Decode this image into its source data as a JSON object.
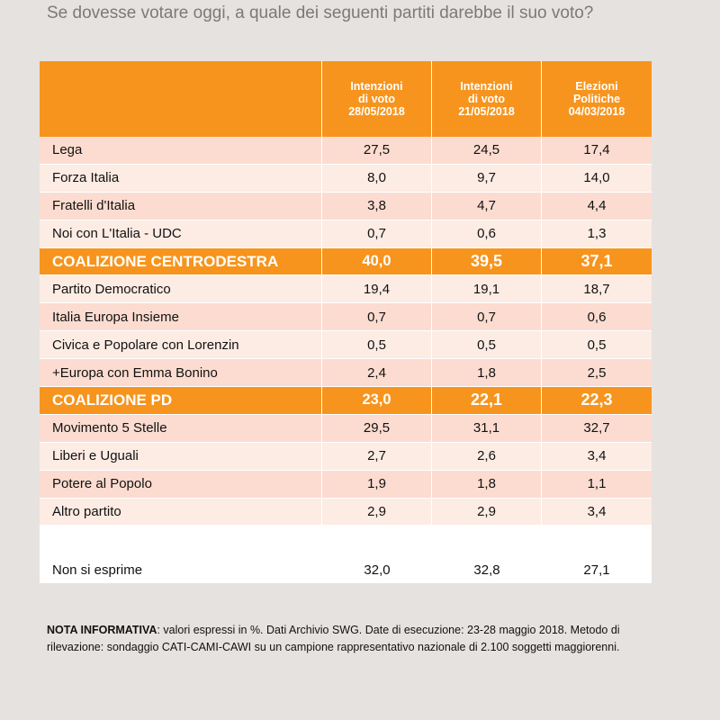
{
  "question": "Se dovesse votare oggi, a quale dei seguenti partiti darebbe il suo voto?",
  "columns": [
    [
      "Intenzioni",
      "di voto",
      "28/05/2018"
    ],
    [
      "Intenzioni",
      "di voto",
      "21/05/2018"
    ],
    [
      "Elezioni",
      "Politiche",
      "04/03/2018"
    ]
  ],
  "rows": [
    {
      "name": "Lega",
      "v": [
        "27,5",
        "24,5",
        "17,4"
      ]
    },
    {
      "name": "Forza Italia",
      "v": [
        "8,0",
        "9,7",
        "14,0"
      ]
    },
    {
      "name": "Fratelli d'Italia",
      "v": [
        "3,8",
        "4,7",
        "4,4"
      ]
    },
    {
      "name": "Noi con L'Italia - UDC",
      "v": [
        "0,7",
        "0,6",
        "1,3"
      ]
    },
    {
      "name": "COALIZIONE CENTRODESTRA",
      "v": [
        "40,0",
        "39,5",
        "37,1"
      ]
    },
    {
      "name": "Partito Democratico",
      "v": [
        "19,4",
        "19,1",
        "18,7"
      ]
    },
    {
      "name": "Italia Europa Insieme",
      "v": [
        "0,7",
        "0,7",
        "0,6"
      ]
    },
    {
      "name": "Civica e Popolare con Lorenzin",
      "v": [
        "0,5",
        "0,5",
        "0,5"
      ]
    },
    {
      "name": "+Europa con Emma Bonino",
      "v": [
        "2,4",
        "1,8",
        "2,5"
      ]
    },
    {
      "name": "COALIZIONE PD",
      "v": [
        "23,0",
        "22,1",
        "22,3"
      ]
    },
    {
      "name": "Movimento 5 Stelle",
      "v": [
        "29,5",
        "31,1",
        "32,7"
      ]
    },
    {
      "name": "Liberi e Uguali",
      "v": [
        "2,7",
        "2,6",
        "3,4"
      ]
    },
    {
      "name": "Potere al Popolo",
      "v": [
        "1,9",
        "1,8",
        "1,1"
      ]
    },
    {
      "name": "Altro partito",
      "v": [
        "2,9",
        "2,9",
        "3,4"
      ]
    }
  ],
  "non_esprime": {
    "name": "Non si esprime",
    "v": [
      "32,0",
      "32,8",
      "27,1"
    ]
  },
  "note": {
    "label": "NOTA INFORMATIVA",
    "text": ": valori espressi in %. Dati Archivio SWG. Date di esecuzione: 23-28 maggio 2018. Metodo di rilevazione: sondaggio CATI-CAMI-CAWI su un campione rappresentativo nazionale di 2.100 soggetti maggiorenni."
  },
  "colors": {
    "header": "#f7941d",
    "row_dark": "#fcdcd0",
    "row_light": "#fdece4",
    "background": "#e6e2df"
  },
  "chart_data": {
    "type": "table",
    "columns": [
      "Intenzioni di voto 28/05/2018",
      "Intenzioni di voto 21/05/2018",
      "Elezioni Politiche 04/03/2018"
    ],
    "categories": [
      "Lega",
      "Forza Italia",
      "Fratelli d'Italia",
      "Noi con L'Italia - UDC",
      "COALIZIONE CENTRODESTRA",
      "Partito Democratico",
      "Italia Europa Insieme",
      "Civica e Popolare con Lorenzin",
      "+Europa con Emma Bonino",
      "COALIZIONE PD",
      "Movimento 5 Stelle",
      "Liberi e Uguali",
      "Potere al Popolo",
      "Altro partito",
      "Non si esprime"
    ],
    "series": [
      {
        "name": "Intenzioni di voto 28/05/2018",
        "values": [
          27.5,
          8.0,
          3.8,
          0.7,
          40.0,
          19.4,
          0.7,
          0.5,
          2.4,
          23.0,
          29.5,
          2.7,
          1.9,
          2.9,
          32.0
        ]
      },
      {
        "name": "Intenzioni di voto 21/05/2018",
        "values": [
          24.5,
          9.7,
          4.7,
          0.6,
          39.5,
          19.1,
          0.7,
          0.5,
          1.8,
          22.1,
          31.1,
          2.6,
          1.8,
          2.9,
          32.8
        ]
      },
      {
        "name": "Elezioni Politiche 04/03/2018",
        "values": [
          17.4,
          14.0,
          4.4,
          1.3,
          37.1,
          18.7,
          0.6,
          0.5,
          2.5,
          22.3,
          32.7,
          3.4,
          1.1,
          3.4,
          27.1
        ]
      }
    ]
  }
}
